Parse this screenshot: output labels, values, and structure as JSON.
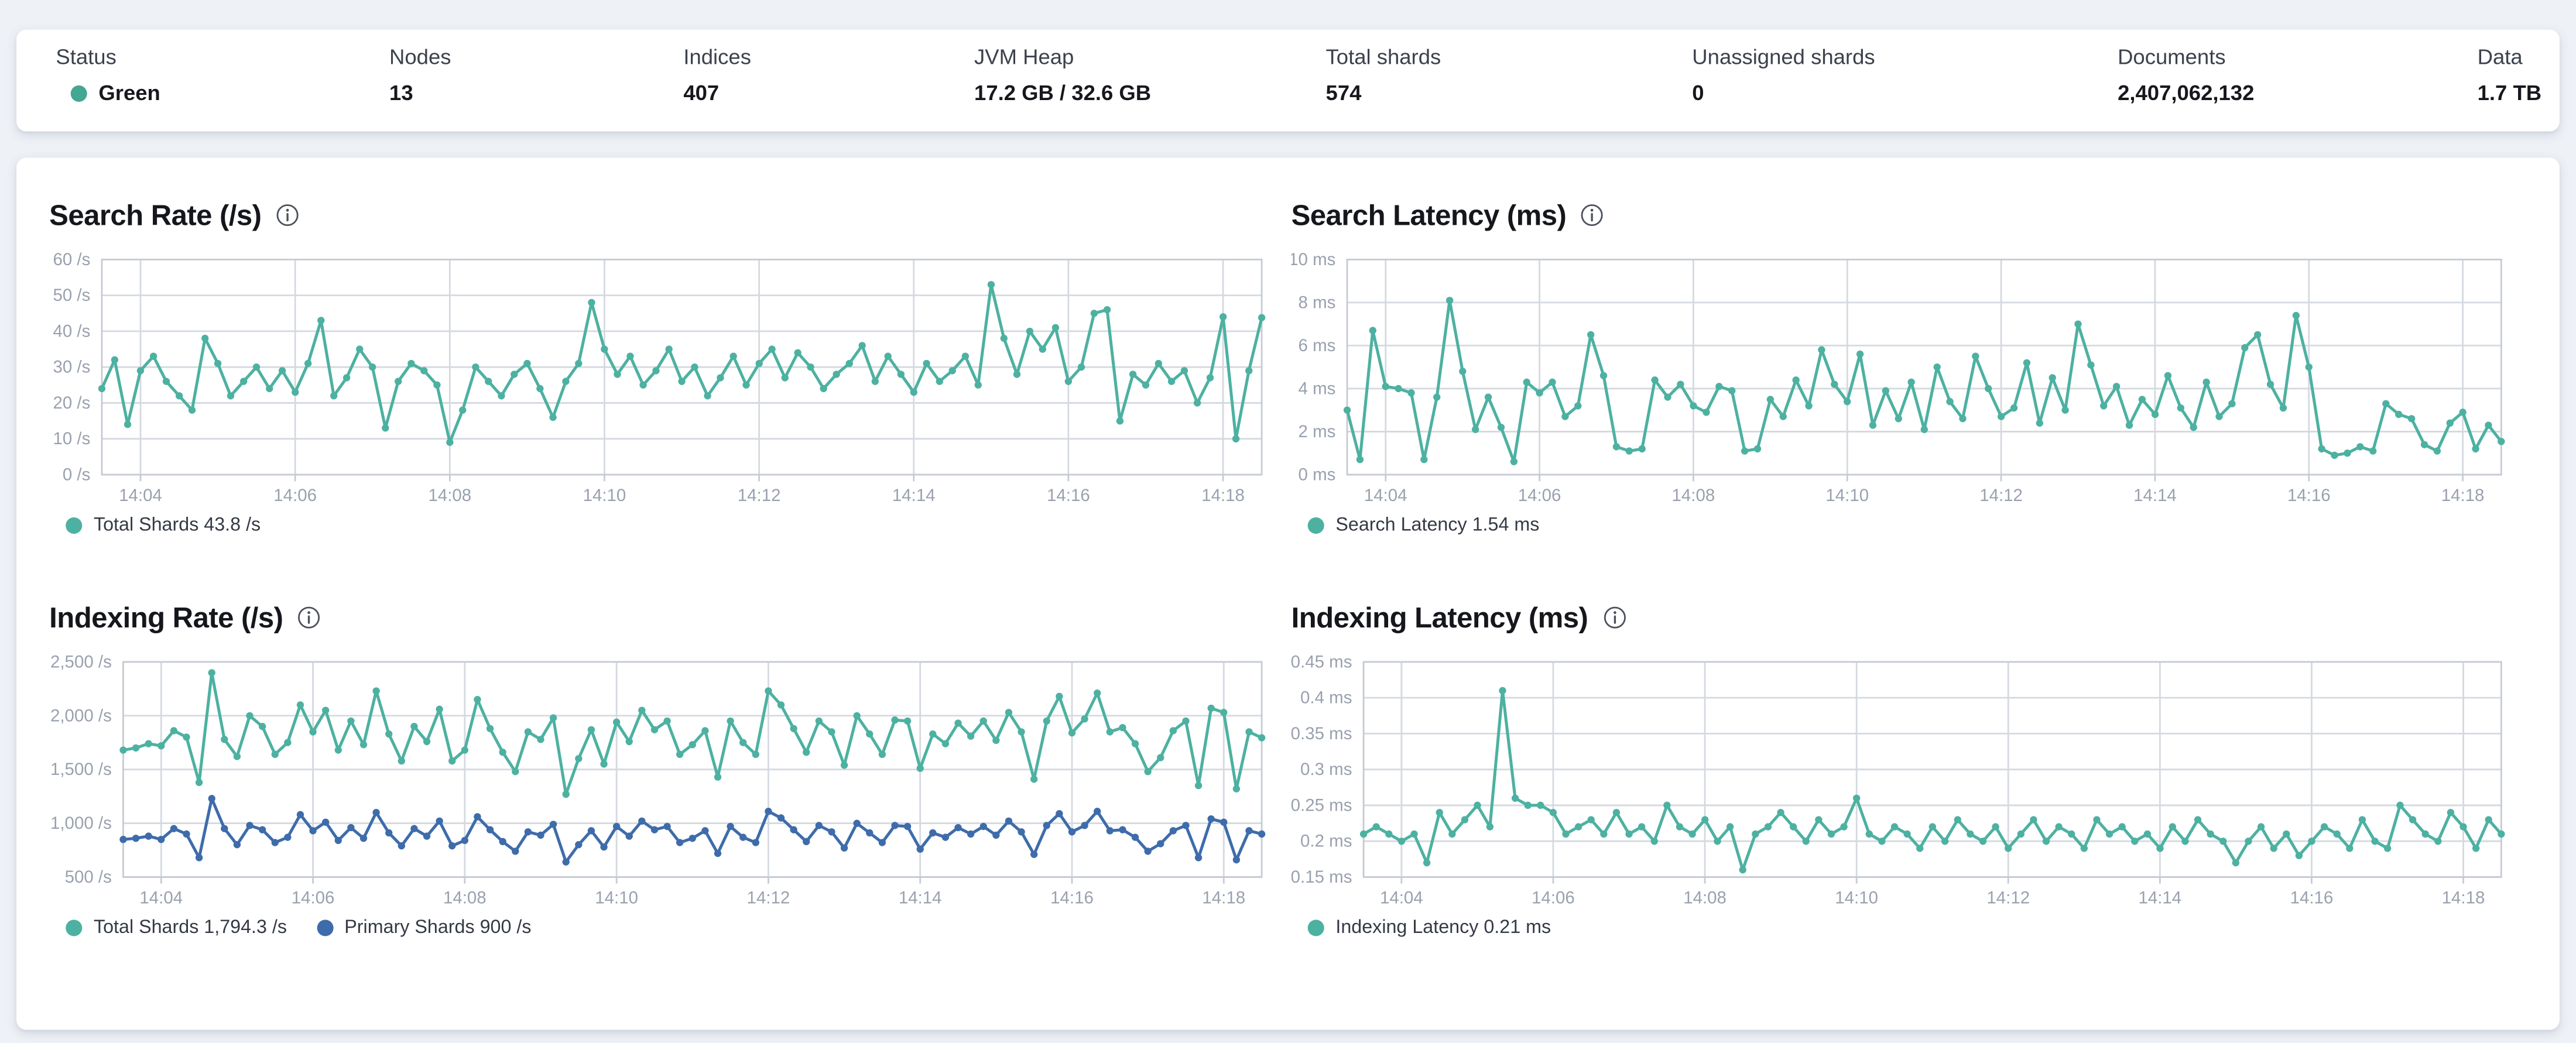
{
  "colors": {
    "teal": "#4db1a1",
    "blue": "#3e6cab",
    "health_green": "#43a794",
    "grid": "#d5d9e0",
    "border": "#c6cbd3",
    "axis_text": "#99a1ae",
    "title_text": "#15171c"
  },
  "status_bar": {
    "metrics": [
      {
        "label": "Status",
        "value": "Green"
      },
      {
        "label": "Nodes",
        "value": "13"
      },
      {
        "label": "Indices",
        "value": "407"
      },
      {
        "label": "JVM Heap",
        "value": "17.2 GB / 32.6 GB"
      },
      {
        "label": "Total shards",
        "value": "574"
      },
      {
        "label": "Unassigned shards",
        "value": "0"
      },
      {
        "label": "Documents",
        "value": "2,407,062,132"
      },
      {
        "label": "Data",
        "value": "1.7 TB"
      }
    ]
  },
  "chart_data": [
    {
      "type": "line",
      "title": "Search Rate (/s)",
      "x_start": "14:03:30",
      "x_interval_s": 10,
      "x_ticks": [
        "14:04",
        "14:06",
        "14:08",
        "14:10",
        "14:12",
        "14:14",
        "14:16",
        "14:18"
      ],
      "ylim": [
        0,
        60
      ],
      "y_tick_values": [
        0,
        10,
        20,
        30,
        40,
        50,
        60
      ],
      "y_tick_labels": [
        "0 /s",
        "10 /s",
        "20 /s",
        "30 /s",
        "40 /s",
        "50 /s",
        "60 /s"
      ],
      "grid": true,
      "legend_position": "bottom",
      "series": [
        {
          "name": "Total Shards",
          "legend": "Total Shards 43.8 /s",
          "color_key": "teal",
          "values": [
            24,
            32,
            14,
            29,
            33,
            26,
            22,
            18,
            38,
            31,
            22,
            26,
            30,
            24,
            29,
            23,
            31,
            43,
            22,
            27,
            35,
            30,
            13,
            26,
            31,
            29,
            25,
            9,
            18,
            30,
            26,
            22,
            28,
            31,
            24,
            16,
            26,
            31,
            48,
            35,
            28,
            33,
            25,
            29,
            35,
            26,
            30,
            22,
            27,
            33,
            25,
            31,
            35,
            27,
            34,
            30,
            24,
            28,
            31,
            36,
            26,
            33,
            28,
            23,
            31,
            26,
            29,
            33,
            25,
            53,
            38,
            28,
            40,
            35,
            41,
            26,
            30,
            45,
            46,
            15,
            28,
            25,
            31,
            26,
            29,
            20,
            27,
            44,
            10,
            29,
            43.8
          ]
        }
      ]
    },
    {
      "type": "line",
      "title": "Search Latency (ms)",
      "x_start": "14:03:30",
      "x_interval_s": 10,
      "x_ticks": [
        "14:04",
        "14:06",
        "14:08",
        "14:10",
        "14:12",
        "14:14",
        "14:16",
        "14:18"
      ],
      "ylim": [
        0,
        10
      ],
      "y_tick_values": [
        0,
        2,
        4,
        6,
        8,
        10
      ],
      "y_tick_labels": [
        "0 ms",
        "2 ms",
        "4 ms",
        "6 ms",
        "8 ms",
        "10 ms"
      ],
      "grid": true,
      "legend_position": "bottom",
      "series": [
        {
          "name": "Search Latency",
          "legend": "Search Latency 1.54 ms",
          "color_key": "teal",
          "values": [
            3.0,
            0.7,
            6.7,
            4.1,
            4.0,
            3.8,
            0.7,
            3.6,
            8.1,
            4.8,
            2.1,
            3.6,
            2.2,
            0.6,
            4.3,
            3.8,
            4.3,
            2.7,
            3.2,
            6.5,
            4.6,
            1.3,
            1.1,
            1.2,
            4.4,
            3.6,
            4.2,
            3.2,
            2.9,
            4.1,
            3.9,
            1.1,
            1.2,
            3.5,
            2.7,
            4.4,
            3.2,
            5.8,
            4.2,
            3.4,
            5.6,
            2.3,
            3.9,
            2.6,
            4.3,
            2.1,
            5.0,
            3.4,
            2.6,
            5.5,
            4.0,
            2.7,
            3.1,
            5.2,
            2.4,
            4.5,
            3.0,
            7.0,
            5.1,
            3.2,
            4.1,
            2.3,
            3.5,
            2.8,
            4.6,
            3.1,
            2.2,
            4.3,
            2.7,
            3.3,
            5.9,
            6.5,
            4.2,
            3.1,
            7.4,
            5.0,
            1.2,
            0.9,
            1.0,
            1.3,
            1.1,
            3.3,
            2.8,
            2.6,
            1.4,
            1.1,
            2.4,
            2.9,
            1.2,
            2.3,
            1.54
          ]
        }
      ]
    },
    {
      "type": "line",
      "title": "Indexing Rate (/s)",
      "x_start": "14:03:30",
      "x_interval_s": 10,
      "x_ticks": [
        "14:04",
        "14:06",
        "14:08",
        "14:10",
        "14:12",
        "14:14",
        "14:16",
        "14:18"
      ],
      "ylim": [
        500,
        2500
      ],
      "y_tick_values": [
        500,
        1000,
        1500,
        2000,
        2500
      ],
      "y_tick_labels": [
        "500 /s",
        "1,000 /s",
        "1,500 /s",
        "2,000 /s",
        "2,500 /s"
      ],
      "grid": true,
      "legend_position": "bottom",
      "series": [
        {
          "name": "Total Shards",
          "legend": "Total Shards 1,794.3 /s",
          "color_key": "teal",
          "values": [
            1680,
            1700,
            1740,
            1720,
            1860,
            1800,
            1380,
            2400,
            1780,
            1620,
            2000,
            1900,
            1640,
            1750,
            2100,
            1850,
            2050,
            1680,
            1950,
            1730,
            2230,
            1830,
            1580,
            1900,
            1760,
            2060,
            1580,
            1680,
            2150,
            1880,
            1660,
            1480,
            1850,
            1780,
            1980,
            1270,
            1600,
            1870,
            1550,
            1940,
            1760,
            2050,
            1870,
            1950,
            1640,
            1730,
            1860,
            1430,
            1950,
            1750,
            1640,
            2230,
            2100,
            1880,
            1660,
            1950,
            1850,
            1540,
            2000,
            1830,
            1640,
            1960,
            1950,
            1510,
            1830,
            1740,
            1930,
            1810,
            1950,
            1770,
            2030,
            1850,
            1410,
            1950,
            2180,
            1840,
            1970,
            2210,
            1850,
            1890,
            1740,
            1480,
            1610,
            1860,
            1950,
            1350,
            2070,
            2030,
            1320,
            1850,
            1794.3
          ]
        },
        {
          "name": "Primary Shards",
          "legend": "Primary Shards 900 /s",
          "color_key": "blue",
          "values": [
            850,
            860,
            880,
            850,
            950,
            900,
            680,
            1230,
            950,
            800,
            980,
            940,
            820,
            870,
            1080,
            930,
            1010,
            840,
            960,
            860,
            1100,
            910,
            790,
            950,
            880,
            1020,
            790,
            840,
            1060,
            940,
            830,
            740,
            920,
            890,
            990,
            640,
            800,
            930,
            780,
            970,
            880,
            1020,
            940,
            970,
            820,
            860,
            930,
            720,
            970,
            870,
            820,
            1110,
            1050,
            940,
            830,
            980,
            920,
            770,
            1000,
            910,
            820,
            980,
            970,
            760,
            910,
            870,
            960,
            900,
            970,
            890,
            1020,
            920,
            710,
            980,
            1090,
            920,
            980,
            1110,
            930,
            940,
            870,
            740,
            810,
            930,
            980,
            680,
            1040,
            1010,
            660,
            930,
            900
          ]
        }
      ]
    },
    {
      "type": "line",
      "title": "Indexing Latency (ms)",
      "x_start": "14:03:30",
      "x_interval_s": 10,
      "x_ticks": [
        "14:04",
        "14:06",
        "14:08",
        "14:10",
        "14:12",
        "14:14",
        "14:16",
        "14:18"
      ],
      "ylim": [
        0.15,
        0.45
      ],
      "y_tick_values": [
        0.15,
        0.2,
        0.25,
        0.3,
        0.35,
        0.4,
        0.45
      ],
      "y_tick_labels": [
        "0.15 ms",
        "0.2 ms",
        "0.25 ms",
        "0.3 ms",
        "0.35 ms",
        "0.4 ms",
        "0.45 ms"
      ],
      "grid": true,
      "legend_position": "bottom",
      "series": [
        {
          "name": "Indexing Latency",
          "legend": "Indexing Latency 0.21 ms",
          "color_key": "teal",
          "values": [
            0.21,
            0.22,
            0.21,
            0.2,
            0.21,
            0.17,
            0.24,
            0.21,
            0.23,
            0.25,
            0.22,
            0.41,
            0.26,
            0.25,
            0.25,
            0.24,
            0.21,
            0.22,
            0.23,
            0.21,
            0.24,
            0.21,
            0.22,
            0.2,
            0.25,
            0.22,
            0.21,
            0.23,
            0.2,
            0.22,
            0.16,
            0.21,
            0.22,
            0.24,
            0.22,
            0.2,
            0.23,
            0.21,
            0.22,
            0.26,
            0.21,
            0.2,
            0.22,
            0.21,
            0.19,
            0.22,
            0.2,
            0.23,
            0.21,
            0.2,
            0.22,
            0.19,
            0.21,
            0.23,
            0.2,
            0.22,
            0.21,
            0.19,
            0.23,
            0.21,
            0.22,
            0.2,
            0.21,
            0.19,
            0.22,
            0.2,
            0.23,
            0.21,
            0.2,
            0.17,
            0.2,
            0.22,
            0.19,
            0.21,
            0.18,
            0.2,
            0.22,
            0.21,
            0.19,
            0.23,
            0.2,
            0.19,
            0.25,
            0.23,
            0.21,
            0.2,
            0.24,
            0.22,
            0.19,
            0.23,
            0.21
          ]
        }
      ]
    }
  ]
}
